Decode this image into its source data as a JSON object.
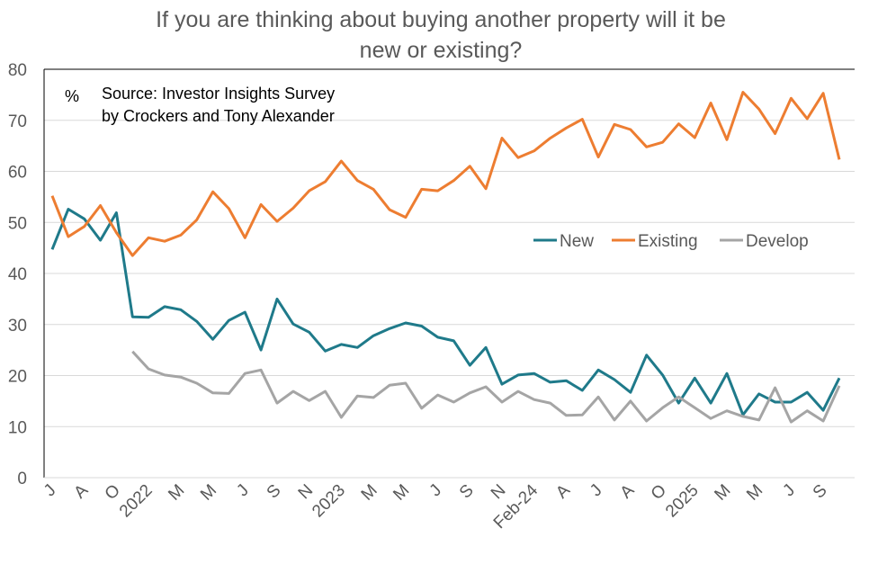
{
  "chart_data": {
    "type": "line",
    "title": [
      "If you are thinking about buying another property will it be",
      "new or existing?"
    ],
    "unit_label": "%",
    "annotation": [
      "Source: Investor Insights Survey",
      "by Crockers and Tony Alexander"
    ],
    "ylim": [
      0,
      80
    ],
    "yticks": [
      0,
      10,
      20,
      30,
      40,
      50,
      60,
      70,
      80
    ],
    "grid": true,
    "legend_position": "right-middle",
    "x_tick_labels": [
      "J",
      "A",
      "O",
      "2022",
      "M",
      "M",
      "J",
      "S",
      "N",
      "2023",
      "M",
      "M",
      "J",
      "S",
      "N",
      "Feb-24",
      "A",
      "J",
      "A",
      "O",
      "2025",
      "M",
      "M",
      "J",
      "S"
    ],
    "x_tick_every": 2,
    "series": [
      {
        "name": "New",
        "color": "#1f7a8a",
        "values": [
          44.7,
          52.6,
          50.7,
          46.5,
          51.9,
          31.5,
          31.4,
          33.5,
          32.9,
          30.6,
          27.1,
          30.8,
          32.4,
          25,
          35,
          30.1,
          28.5,
          24.8,
          26.1,
          25.5,
          27.8,
          29.2,
          30.3,
          29.7,
          27.5,
          26.8,
          22,
          25.5,
          18.3,
          20.1,
          20.4,
          18.7,
          19,
          17.1,
          21.1,
          19.2,
          16.7,
          24,
          20.1,
          14.6,
          19.5,
          14.6,
          20.4,
          12.3,
          16.4,
          14.8,
          14.8,
          16.7,
          13.2,
          19.5
        ]
      },
      {
        "name": "Existing",
        "color": "#ed7d31",
        "values": [
          55.2,
          47.2,
          49.2,
          53.3,
          48,
          43.5,
          47,
          46.3,
          47.5,
          50.5,
          56,
          52.7,
          47,
          53.5,
          50.2,
          52.8,
          56.2,
          58,
          62,
          58.2,
          56.5,
          52.5,
          51,
          56.5,
          56.2,
          58.2,
          61,
          56.6,
          66.5,
          62.7,
          64,
          66.5,
          68.5,
          70.2,
          62.8,
          69.2,
          68.2,
          64.8,
          65.7,
          69.3,
          66.6,
          73.4,
          66.2,
          75.5,
          72.2,
          67.4,
          74.3,
          70.3,
          75.3,
          62.3
        ]
      },
      {
        "name": "Develop",
        "color": "#a5a5a5",
        "values": [
          null,
          null,
          null,
          null,
          null,
          24.7,
          21.3,
          20.1,
          19.7,
          18.5,
          16.6,
          16.5,
          20.4,
          21.1,
          14.6,
          16.9,
          15.1,
          16.9,
          11.8,
          16,
          15.7,
          18.1,
          18.5,
          13.6,
          16.2,
          14.8,
          16.6,
          17.8,
          14.8,
          16.9,
          15.3,
          14.6,
          12.2,
          12.3,
          15.8,
          11.3,
          15,
          11.1,
          13.7,
          15.8,
          13.7,
          11.6,
          13.1,
          12,
          11.3,
          17.6,
          10.9,
          13.1,
          11.1,
          18
        ]
      }
    ]
  }
}
